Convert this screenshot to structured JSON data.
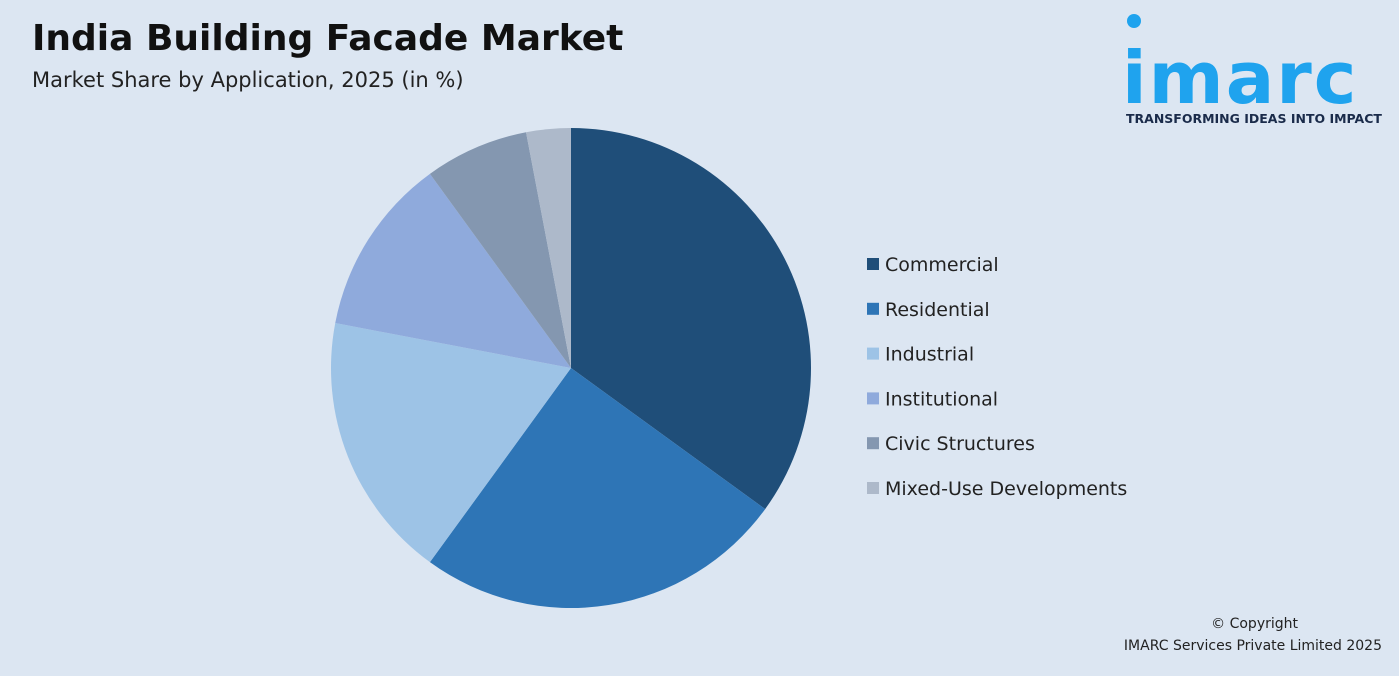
{
  "chart_data": {
    "type": "pie",
    "title": "India Building Facade Market",
    "subtitle": "Market Share by Application, 2025 (in %)",
    "categories": [
      "Commercial",
      "Residential",
      "Industrial",
      "Institutional",
      "Civic Structures",
      "Mixed-Use Developments"
    ],
    "values": [
      35,
      25,
      18,
      12,
      7,
      3
    ],
    "colors": [
      "#1f4e79",
      "#2e75b6",
      "#9dc3e6",
      "#8faadc",
      "#8497b0",
      "#adb9ca"
    ],
    "legend": "right"
  },
  "logo": {
    "name": "imarc",
    "tagline": "TRANSFORMING IDEAS INTO IMPACT"
  },
  "footer": {
    "copyright": "© Copyright",
    "owner": "IMARC Services Private Limited 2025"
  }
}
